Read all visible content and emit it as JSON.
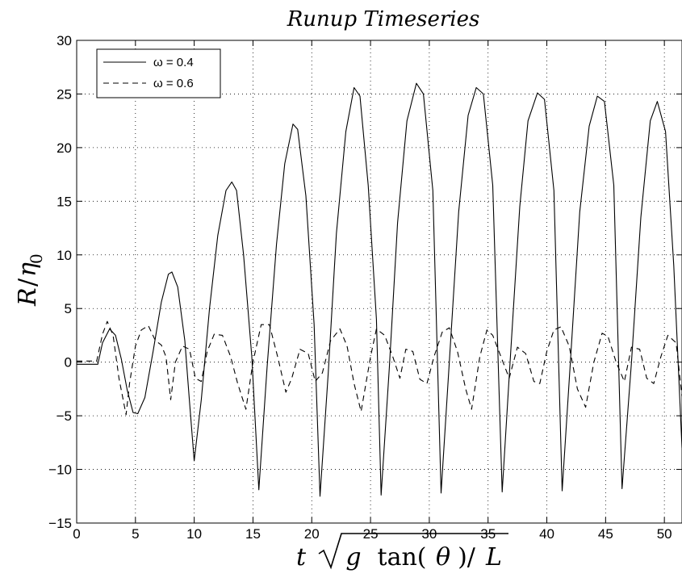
{
  "chart_data": {
    "type": "line",
    "title": "Runup Timeseries",
    "xlabel": {
      "t": "t",
      "g": "g",
      "tan": "tan(",
      "theta": "θ",
      "close": ")/",
      "L": "L"
    },
    "ylabel": {
      "R": "R",
      "slash": "/",
      "eta": "η",
      "sub": "0"
    },
    "xlim": [
      0,
      51.5
    ],
    "ylim": [
      -15,
      30
    ],
    "xticks": [
      0,
      5,
      10,
      15,
      20,
      25,
      30,
      35,
      40,
      45,
      50
    ],
    "yticks": [
      -15,
      -10,
      -5,
      0,
      5,
      10,
      15,
      20,
      25,
      30
    ],
    "xtick_labels": [
      "0",
      "5",
      "10",
      "15",
      "20",
      "25",
      "30",
      "35",
      "40",
      "45",
      "50"
    ],
    "ytick_labels": [
      "−15",
      "−10",
      "−5",
      "0",
      "5",
      "10",
      "15",
      "20",
      "25",
      "30"
    ],
    "grid": true,
    "legend_position": "top-left",
    "series": [
      {
        "name": "ω = 0.4",
        "style": "solid",
        "color": "#000000",
        "x": [
          0,
          1.8,
          2.2,
          2.8,
          3.3,
          3.8,
          4.3,
          4.8,
          5.2,
          5.8,
          6.5,
          7.2,
          7.8,
          8.1,
          8.6,
          9.2,
          9.6,
          10.0,
          10.6,
          11.3,
          12.0,
          12.7,
          13.2,
          13.6,
          14.2,
          14.9,
          15.5,
          16.2,
          17.0,
          17.7,
          18.4,
          18.8,
          19.5,
          20.2,
          20.7,
          21.4,
          22.1,
          22.9,
          23.6,
          24.1,
          24.8,
          25.5,
          25.9,
          26.6,
          27.3,
          28.1,
          28.9,
          29.5,
          30.3,
          31.0,
          31.7,
          32.5,
          33.3,
          34.0,
          34.6,
          35.4,
          36.2,
          36.9,
          37.7,
          38.4,
          39.2,
          39.8,
          40.6,
          41.3,
          42.0,
          42.8,
          43.6,
          44.3,
          44.9,
          45.7,
          46.4,
          47.2,
          48.0,
          48.8,
          49.4,
          50.1,
          50.8,
          51.5
        ],
        "y": [
          -0.2,
          -0.2,
          1.8,
          3.1,
          2.5,
          0.3,
          -2.6,
          -4.7,
          -4.8,
          -3.3,
          1.0,
          5.6,
          8.2,
          8.4,
          7.0,
          2.0,
          -3.7,
          -9.2,
          -3.5,
          5.0,
          11.8,
          16.0,
          16.8,
          16.0,
          10.0,
          0.5,
          -11.9,
          -0.5,
          11.0,
          18.5,
          22.2,
          21.7,
          15.5,
          3.5,
          -12.5,
          -1.0,
          12.0,
          21.5,
          25.6,
          24.8,
          16.5,
          4.0,
          -12.4,
          -0.5,
          13.0,
          22.5,
          26.0,
          25.0,
          16.0,
          -12.2,
          0.0,
          14.0,
          23.0,
          25.6,
          25.0,
          16.5,
          -12.1,
          0.5,
          14.5,
          22.5,
          25.1,
          24.5,
          16.0,
          -12.0,
          0.0,
          14.0,
          22.0,
          24.8,
          24.3,
          16.5,
          -11.8,
          0.0,
          13.5,
          22.5,
          24.3,
          21.5,
          9.0,
          -8.0
        ]
      },
      {
        "name": "ω = 0.6",
        "style": "dashed",
        "color": "#000000",
        "x": [
          0,
          1.7,
          2.2,
          2.6,
          3.1,
          3.6,
          4.2,
          4.5,
          5.0,
          5.5,
          6.1,
          6.7,
          7.2,
          7.6,
          8.0,
          8.4,
          9.0,
          9.6,
          10.1,
          10.6,
          11.1,
          11.7,
          12.4,
          13.1,
          13.7,
          14.4,
          15.0,
          15.7,
          16.4,
          17.1,
          17.8,
          18.3,
          19.0,
          19.7,
          20.3,
          20.9,
          21.6,
          22.4,
          23.0,
          23.6,
          24.2,
          25.0,
          25.5,
          26.2,
          26.9,
          27.5,
          28.0,
          28.6,
          29.2,
          29.8,
          30.4,
          31.1,
          31.7,
          32.4,
          33.1,
          33.6,
          34.3,
          34.9,
          35.4,
          36.1,
          36.8,
          37.5,
          38.2,
          38.9,
          39.4,
          40.0,
          40.6,
          41.2,
          41.9,
          42.6,
          43.3,
          44.0,
          44.7,
          45.2,
          45.9,
          46.6,
          47.2,
          47.9,
          48.5,
          49.1,
          49.7,
          50.3,
          51.0,
          51.5
        ],
        "y": [
          0.1,
          0.1,
          2.6,
          3.8,
          2.5,
          -1.5,
          -4.9,
          -2.0,
          1.5,
          3.0,
          3.4,
          2.0,
          1.6,
          0.5,
          -3.5,
          0.0,
          1.5,
          1.2,
          -1.5,
          -1.8,
          1.0,
          2.6,
          2.5,
          0.5,
          -2.0,
          -4.4,
          0.0,
          3.5,
          3.5,
          0.5,
          -2.8,
          -1.5,
          1.2,
          0.8,
          -1.8,
          -1.0,
          2.0,
          3.1,
          1.5,
          -2.0,
          -4.6,
          0.5,
          3.1,
          2.5,
          0.5,
          -1.5,
          1.2,
          1.0,
          -1.6,
          -2.0,
          0.5,
          2.8,
          3.2,
          1.0,
          -2.5,
          -4.4,
          0.5,
          3.0,
          2.5,
          0.5,
          -1.5,
          1.4,
          0.8,
          -1.8,
          -2.0,
          1.0,
          3.0,
          3.3,
          1.5,
          -2.5,
          -4.2,
          0.0,
          2.7,
          2.4,
          0.0,
          -1.8,
          1.4,
          1.2,
          -1.5,
          -2.0,
          0.5,
          2.5,
          1.8,
          -3.2
        ]
      }
    ]
  }
}
